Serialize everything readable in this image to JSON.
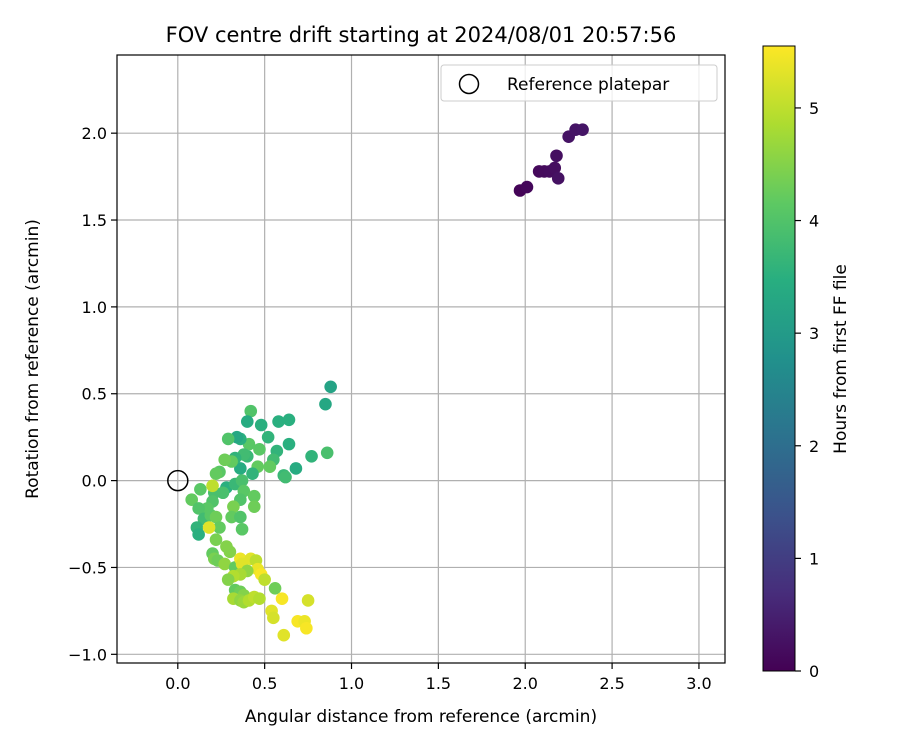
{
  "chart_data": {
    "type": "scatter",
    "title": "FOV centre drift starting at 2024/08/01 20:57:56",
    "xlabel": "Angular distance from reference (arcmin)",
    "ylabel": "Rotation from reference (arcmin)",
    "xlim": [
      -0.35,
      3.15
    ],
    "ylim": [
      -1.05,
      2.45
    ],
    "xticks": [
      0.0,
      0.5,
      1.0,
      1.5,
      2.0,
      2.5,
      3.0
    ],
    "xtick_labels": [
      "0.0",
      "0.5",
      "1.0",
      "1.5",
      "2.0",
      "2.5",
      "3.0"
    ],
    "yticks": [
      -1.0,
      -0.5,
      0.0,
      0.5,
      1.0,
      1.5,
      2.0
    ],
    "ytick_labels": [
      "−1.0",
      "−0.5",
      "0.0",
      "0.5",
      "1.0",
      "1.5",
      "2.0"
    ],
    "grid": true,
    "legend_position": "top-right",
    "legend": [
      {
        "label": "Reference platepar",
        "marker": "open-circle",
        "color": "#000000"
      }
    ],
    "reference_point": {
      "x": 0.0,
      "y": 0.0
    },
    "colorbar": {
      "label": "Hours from first FF file",
      "range": [
        0,
        5.55
      ],
      "ticks": [
        0,
        1,
        2,
        3,
        4,
        5
      ],
      "tick_labels": [
        "0",
        "1",
        "2",
        "3",
        "4",
        "5"
      ],
      "colormap": "viridis"
    },
    "points": [
      {
        "x": 1.97,
        "y": 1.67,
        "c": 0.05
      },
      {
        "x": 2.01,
        "y": 1.69,
        "c": 0.1
      },
      {
        "x": 2.08,
        "y": 1.78,
        "c": 0.12
      },
      {
        "x": 2.11,
        "y": 1.78,
        "c": 0.15
      },
      {
        "x": 2.14,
        "y": 1.78,
        "c": 0.18
      },
      {
        "x": 2.17,
        "y": 1.8,
        "c": 0.2
      },
      {
        "x": 2.18,
        "y": 1.87,
        "c": 0.22
      },
      {
        "x": 2.19,
        "y": 1.74,
        "c": 0.25
      },
      {
        "x": 2.25,
        "y": 1.98,
        "c": 0.28
      },
      {
        "x": 2.29,
        "y": 2.02,
        "c": 0.3
      },
      {
        "x": 2.33,
        "y": 2.02,
        "c": 0.32
      },
      {
        "x": 0.88,
        "y": 0.54,
        "c": 3.2
      },
      {
        "x": 0.85,
        "y": 0.44,
        "c": 3.3
      },
      {
        "x": 0.86,
        "y": 0.16,
        "c": 3.9
      },
      {
        "x": 0.77,
        "y": 0.14,
        "c": 3.6
      },
      {
        "x": 0.68,
        "y": 0.07,
        "c": 3.4
      },
      {
        "x": 0.64,
        "y": 0.35,
        "c": 3.5
      },
      {
        "x": 0.64,
        "y": 0.21,
        "c": 3.5
      },
      {
        "x": 0.61,
        "y": 0.03,
        "c": 3.7
      },
      {
        "x": 0.62,
        "y": 0.02,
        "c": 3.8
      },
      {
        "x": 0.58,
        "y": 0.34,
        "c": 3.5
      },
      {
        "x": 0.57,
        "y": 0.17,
        "c": 3.6
      },
      {
        "x": 0.55,
        "y": 0.12,
        "c": 3.8
      },
      {
        "x": 0.52,
        "y": 0.25,
        "c": 3.6
      },
      {
        "x": 0.53,
        "y": 0.08,
        "c": 4.2
      },
      {
        "x": 0.48,
        "y": 0.32,
        "c": 3.5
      },
      {
        "x": 0.47,
        "y": 0.18,
        "c": 4.1
      },
      {
        "x": 0.46,
        "y": 0.08,
        "c": 4.2
      },
      {
        "x": 0.42,
        "y": 0.4,
        "c": 4.0
      },
      {
        "x": 0.4,
        "y": 0.34,
        "c": 3.4
      },
      {
        "x": 0.41,
        "y": 0.21,
        "c": 4.1
      },
      {
        "x": 0.4,
        "y": 0.14,
        "c": 3.7
      },
      {
        "x": 0.43,
        "y": 0.04,
        "c": 3.6
      },
      {
        "x": 0.36,
        "y": 0.24,
        "c": 3.5
      },
      {
        "x": 0.34,
        "y": 0.25,
        "c": 3.3
      },
      {
        "x": 0.38,
        "y": 0.15,
        "c": 3.8
      },
      {
        "x": 0.36,
        "y": 0.07,
        "c": 3.4
      },
      {
        "x": 0.33,
        "y": 0.13,
        "c": 3.6
      },
      {
        "x": 0.29,
        "y": 0.24,
        "c": 4.0
      },
      {
        "x": 0.31,
        "y": 0.11,
        "c": 4.2
      },
      {
        "x": 0.27,
        "y": 0.12,
        "c": 4.3
      },
      {
        "x": 0.24,
        "y": 0.05,
        "c": 4.1
      },
      {
        "x": 0.22,
        "y": 0.04,
        "c": 4.2
      },
      {
        "x": 0.28,
        "y": -0.04,
        "c": 3.5
      },
      {
        "x": 0.33,
        "y": -0.02,
        "c": 3.7
      },
      {
        "x": 0.37,
        "y": 0.0,
        "c": 3.9
      },
      {
        "x": 0.38,
        "y": -0.06,
        "c": 4.1
      },
      {
        "x": 0.44,
        "y": -0.09,
        "c": 4.2
      },
      {
        "x": 0.44,
        "y": -0.15,
        "c": 4.3
      },
      {
        "x": 0.36,
        "y": -0.11,
        "c": 4.0
      },
      {
        "x": 0.32,
        "y": -0.15,
        "c": 4.4
      },
      {
        "x": 0.31,
        "y": -0.21,
        "c": 4.2
      },
      {
        "x": 0.36,
        "y": -0.21,
        "c": 4.0
      },
      {
        "x": 0.37,
        "y": -0.28,
        "c": 4.1
      },
      {
        "x": 0.26,
        "y": -0.07,
        "c": 3.9
      },
      {
        "x": 0.21,
        "y": -0.07,
        "c": 3.9
      },
      {
        "x": 0.2,
        "y": -0.12,
        "c": 4.0
      },
      {
        "x": 0.17,
        "y": -0.16,
        "c": 4.1
      },
      {
        "x": 0.13,
        "y": -0.05,
        "c": 4.1
      },
      {
        "x": 0.08,
        "y": -0.11,
        "c": 4.2
      },
      {
        "x": 0.12,
        "y": -0.16,
        "c": 4.0
      },
      {
        "x": 0.15,
        "y": -0.22,
        "c": 3.8
      },
      {
        "x": 0.11,
        "y": -0.27,
        "c": 3.6
      },
      {
        "x": 0.12,
        "y": -0.31,
        "c": 3.5
      },
      {
        "x": 0.19,
        "y": -0.2,
        "c": 4.1
      },
      {
        "x": 0.22,
        "y": -0.21,
        "c": 4.3
      },
      {
        "x": 0.24,
        "y": -0.27,
        "c": 4.2
      },
      {
        "x": 0.18,
        "y": -0.27,
        "c": 5.3
      },
      {
        "x": 0.2,
        "y": -0.03,
        "c": 5.0
      },
      {
        "x": 0.22,
        "y": -0.34,
        "c": 4.4
      },
      {
        "x": 0.28,
        "y": -0.38,
        "c": 4.5
      },
      {
        "x": 0.3,
        "y": -0.41,
        "c": 4.5
      },
      {
        "x": 0.2,
        "y": -0.42,
        "c": 4.2
      },
      {
        "x": 0.21,
        "y": -0.45,
        "c": 4.4
      },
      {
        "x": 0.23,
        "y": -0.46,
        "c": 4.3
      },
      {
        "x": 0.27,
        "y": -0.48,
        "c": 4.6
      },
      {
        "x": 0.33,
        "y": -0.5,
        "c": 4.2
      },
      {
        "x": 0.36,
        "y": -0.45,
        "c": 5.4
      },
      {
        "x": 0.37,
        "y": -0.48,
        "c": 5.3
      },
      {
        "x": 0.42,
        "y": -0.45,
        "c": 5.3
      },
      {
        "x": 0.45,
        "y": -0.46,
        "c": 5.0
      },
      {
        "x": 0.46,
        "y": -0.51,
        "c": 5.4
      },
      {
        "x": 0.48,
        "y": -0.54,
        "c": 5.5
      },
      {
        "x": 0.5,
        "y": -0.57,
        "c": 5.0
      },
      {
        "x": 0.4,
        "y": -0.52,
        "c": 4.6
      },
      {
        "x": 0.36,
        "y": -0.54,
        "c": 4.8
      },
      {
        "x": 0.32,
        "y": -0.55,
        "c": 4.9
      },
      {
        "x": 0.29,
        "y": -0.57,
        "c": 4.5
      },
      {
        "x": 0.33,
        "y": -0.63,
        "c": 4.2
      },
      {
        "x": 0.36,
        "y": -0.64,
        "c": 4.3
      },
      {
        "x": 0.38,
        "y": -0.66,
        "c": 4.5
      },
      {
        "x": 0.32,
        "y": -0.68,
        "c": 4.8
      },
      {
        "x": 0.36,
        "y": -0.69,
        "c": 4.6
      },
      {
        "x": 0.38,
        "y": -0.7,
        "c": 4.7
      },
      {
        "x": 0.41,
        "y": -0.69,
        "c": 4.9
      },
      {
        "x": 0.44,
        "y": -0.67,
        "c": 5.0
      },
      {
        "x": 0.47,
        "y": -0.68,
        "c": 4.9
      },
      {
        "x": 0.56,
        "y": -0.62,
        "c": 4.3
      },
      {
        "x": 0.54,
        "y": -0.75,
        "c": 5.3
      },
      {
        "x": 0.55,
        "y": -0.79,
        "c": 5.2
      },
      {
        "x": 0.6,
        "y": -0.68,
        "c": 5.5
      },
      {
        "x": 0.61,
        "y": -0.89,
        "c": 5.3
      },
      {
        "x": 0.69,
        "y": -0.81,
        "c": 5.5
      },
      {
        "x": 0.73,
        "y": -0.81,
        "c": 5.4
      },
      {
        "x": 0.74,
        "y": -0.85,
        "c": 5.5
      },
      {
        "x": 0.75,
        "y": -0.69,
        "c": 5.2
      }
    ]
  }
}
